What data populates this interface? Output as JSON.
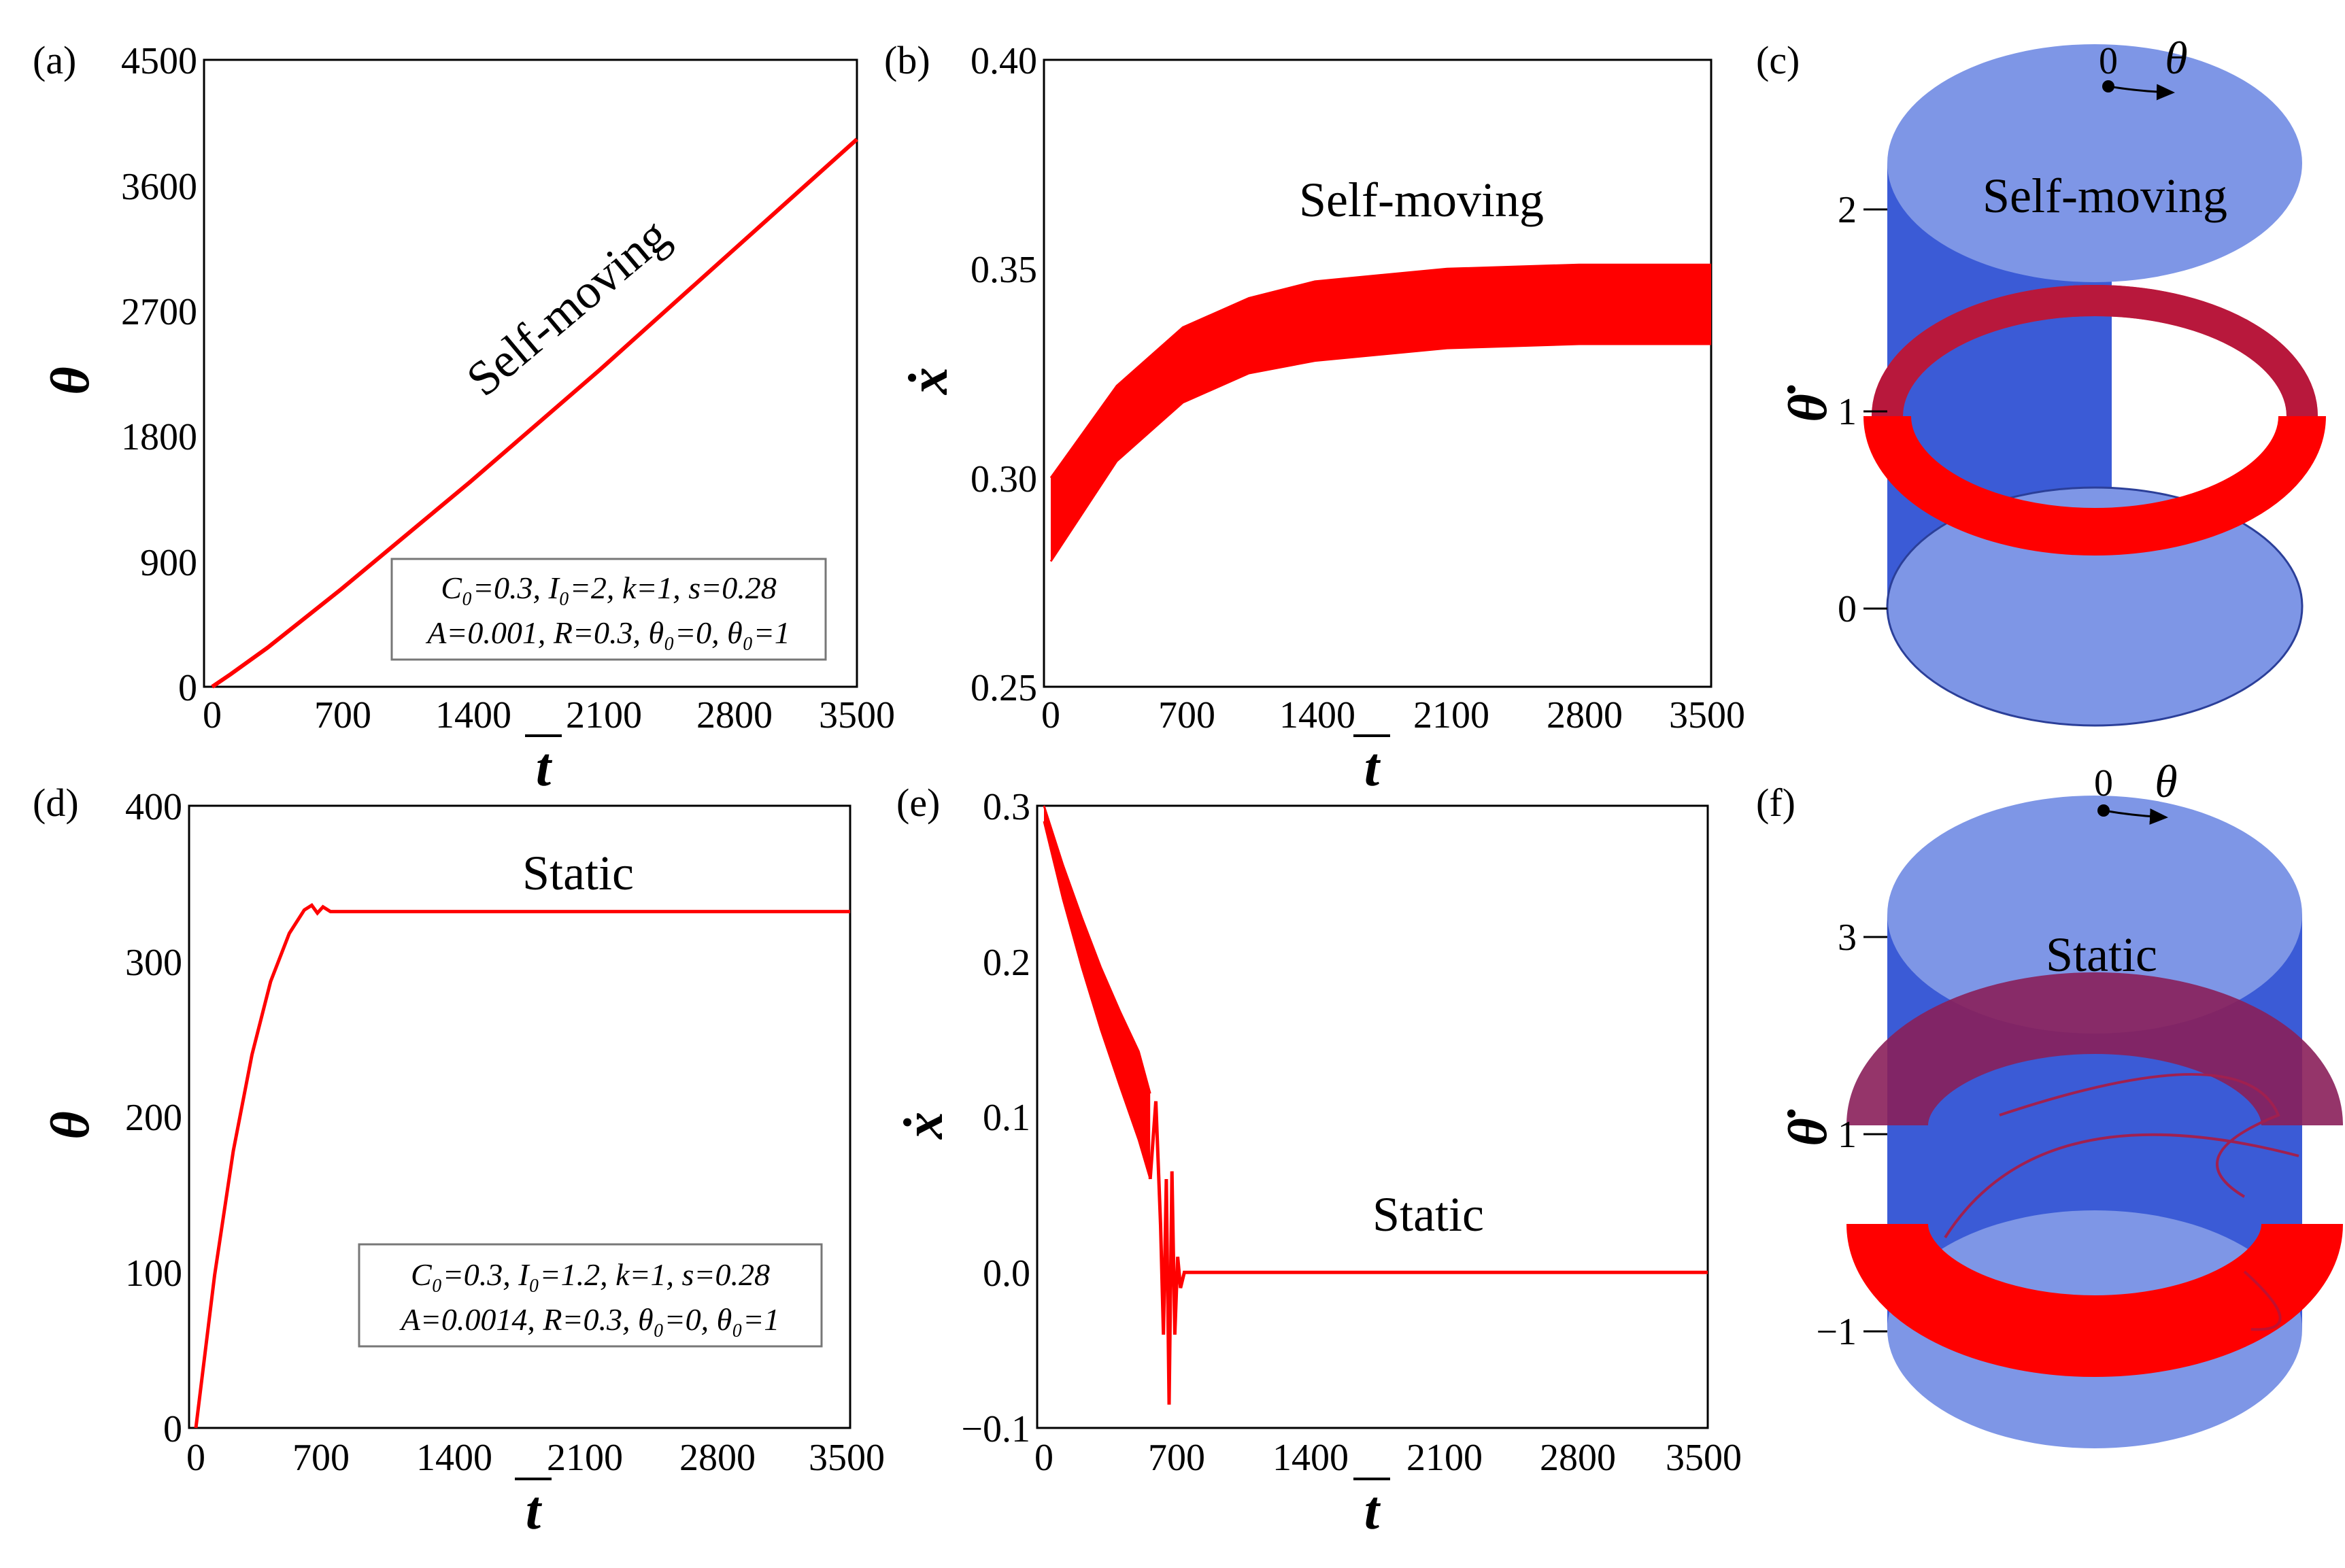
{
  "chart_data": [
    {
      "id": "a",
      "type": "line",
      "panel_label": "(a)",
      "xlabel": "t",
      "ylabel": "θ",
      "xlim": [
        0,
        3500
      ],
      "ylim": [
        0,
        4500
      ],
      "xticks": [
        "0",
        "700",
        "1400",
        "2100",
        "2800",
        "3500"
      ],
      "yticks": [
        "0",
        "900",
        "1800",
        "2700",
        "3600",
        "4500"
      ],
      "annotation": "Self-moving",
      "params": [
        "C₀=0.3, I₀=2, k=1, s=0.28",
        "A=0.001, R=0.3, θ₀=0, θ₀=1"
      ],
      "series": [
        {
          "name": "θ",
          "color": "#ff0000",
          "x": [
            0,
            100,
            300,
            700,
            1400,
            2100,
            2800,
            3500
          ],
          "y": [
            0,
            90,
            280,
            700,
            1470,
            2270,
            3100,
            3930
          ]
        }
      ]
    },
    {
      "id": "b",
      "type": "line",
      "panel_label": "(b)",
      "xlabel": "t",
      "ylabel": "ẋ",
      "xlim": [
        0,
        3500
      ],
      "ylim": [
        0.25,
        0.4
      ],
      "xticks": [
        "0",
        "700",
        "1400",
        "2100",
        "2800",
        "3500"
      ],
      "yticks": [
        "0.25",
        "0.30",
        "0.35",
        "0.40"
      ],
      "annotation": "Self-moving",
      "series": [
        {
          "name": "ẋ upper envelope",
          "color": "#ff0000",
          "x": [
            0,
            350,
            700,
            1050,
            1400,
            2100,
            2800,
            3500
          ],
          "y": [
            0.3,
            0.322,
            0.336,
            0.343,
            0.347,
            0.35,
            0.351,
            0.351
          ]
        },
        {
          "name": "ẋ lower envelope",
          "color": "#ff0000",
          "x": [
            0,
            350,
            700,
            1050,
            1400,
            2100,
            2800,
            3500
          ],
          "y": [
            0.28,
            0.304,
            0.318,
            0.325,
            0.328,
            0.331,
            0.332,
            0.332
          ]
        }
      ]
    },
    {
      "id": "c",
      "type": "3d-cylinder",
      "panel_label": "(c)",
      "ylabel": "θ̇",
      "yticks": [
        "0",
        "1",
        "2"
      ],
      "angle_label": "θ",
      "angle_zero": "0",
      "annotation": "Self-moving"
    },
    {
      "id": "d",
      "type": "line",
      "panel_label": "(d)",
      "xlabel": "t",
      "ylabel": "θ",
      "xlim": [
        0,
        3500
      ],
      "ylim": [
        0,
        400
      ],
      "xticks": [
        "0",
        "700",
        "1400",
        "2100",
        "2800",
        "3500"
      ],
      "yticks": [
        "0",
        "100",
        "200",
        "300",
        "400"
      ],
      "annotation": "Static",
      "params": [
        "C₀=0.3, I₀=1.2, k=1, s=0.28",
        "A=0.0014, R=0.3, θ₀=0, θ₀=1"
      ],
      "series": [
        {
          "name": "θ",
          "color": "#ff0000",
          "x": [
            0,
            100,
            200,
            300,
            400,
            500,
            580,
            620,
            650,
            680,
            720,
            3500
          ],
          "y": [
            0,
            98,
            178,
            240,
            287,
            318,
            333,
            336,
            331,
            335,
            332,
            332
          ]
        }
      ]
    },
    {
      "id": "e",
      "type": "line",
      "panel_label": "(e)",
      "xlabel": "t",
      "ylabel": "ẋ",
      "xlim": [
        0,
        3500
      ],
      "ylim": [
        -0.1,
        0.3
      ],
      "xticks": [
        "0",
        "700",
        "1400",
        "2100",
        "2800",
        "3500"
      ],
      "yticks": [
        "−0.1",
        "0.0",
        "0.1",
        "0.2",
        "0.3"
      ],
      "annotation": "Static",
      "series": [
        {
          "name": "ẋ upper envelope",
          "color": "#ff0000",
          "x": [
            0,
            100,
            200,
            300,
            400,
            500,
            560
          ],
          "y": [
            0.3,
            0.262,
            0.228,
            0.196,
            0.168,
            0.142,
            0.115
          ]
        },
        {
          "name": "ẋ lower envelope",
          "color": "#ff0000",
          "x": [
            0,
            100,
            200,
            300,
            400,
            500,
            560
          ],
          "y": [
            0.29,
            0.24,
            0.196,
            0.156,
            0.12,
            0.085,
            0.06
          ]
        },
        {
          "name": "ẋ transient",
          "color": "#ff0000",
          "x": [
            560,
            590,
            615,
            630,
            645,
            660,
            675,
            690,
            705,
            720,
            740,
            3500
          ],
          "y": [
            0.06,
            0.11,
            0.03,
            -0.04,
            0.06,
            -0.085,
            0.065,
            -0.04,
            0.01,
            -0.01,
            0.0,
            0.0
          ]
        }
      ]
    },
    {
      "id": "f",
      "type": "3d-cylinder",
      "panel_label": "(f)",
      "ylabel": "θ̇",
      "yticks": [
        "−1",
        "1",
        "3"
      ],
      "angle_label": "θ",
      "angle_zero": "0",
      "annotation": "Static"
    }
  ]
}
